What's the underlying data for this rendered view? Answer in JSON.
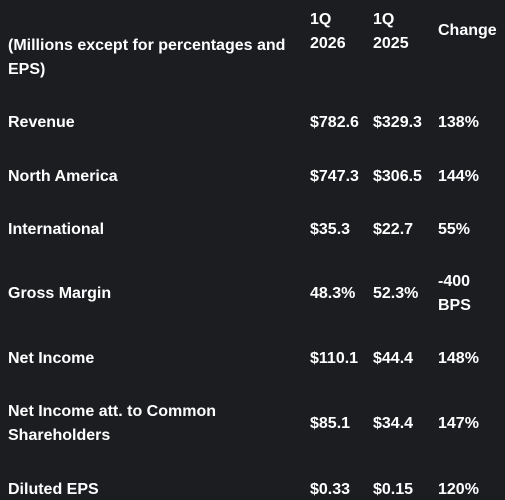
{
  "table": {
    "header": [
      "(Millions except for percentages and EPS)",
      "1Q 2026",
      "1Q 2025",
      "Change"
    ],
    "rows": [
      [
        "Revenue",
        "$782.6",
        "$329.3",
        "138%"
      ],
      [
        "North America",
        "$747.3",
        "$306.5",
        "144%"
      ],
      [
        "International",
        "$35.3",
        "$22.7",
        "55%"
      ],
      [
        "Gross Margin",
        "48.3%",
        "52.3%",
        "-400 BPS"
      ],
      [
        "Net Income",
        "$110.1",
        "$44.4",
        "148%"
      ],
      [
        "Net Income att. to Common Shareholders",
        "$85.1",
        "$34.4",
        "147%"
      ],
      [
        "Diluted EPS",
        "$0.33",
        "$0.15",
        "120%"
      ]
    ]
  }
}
